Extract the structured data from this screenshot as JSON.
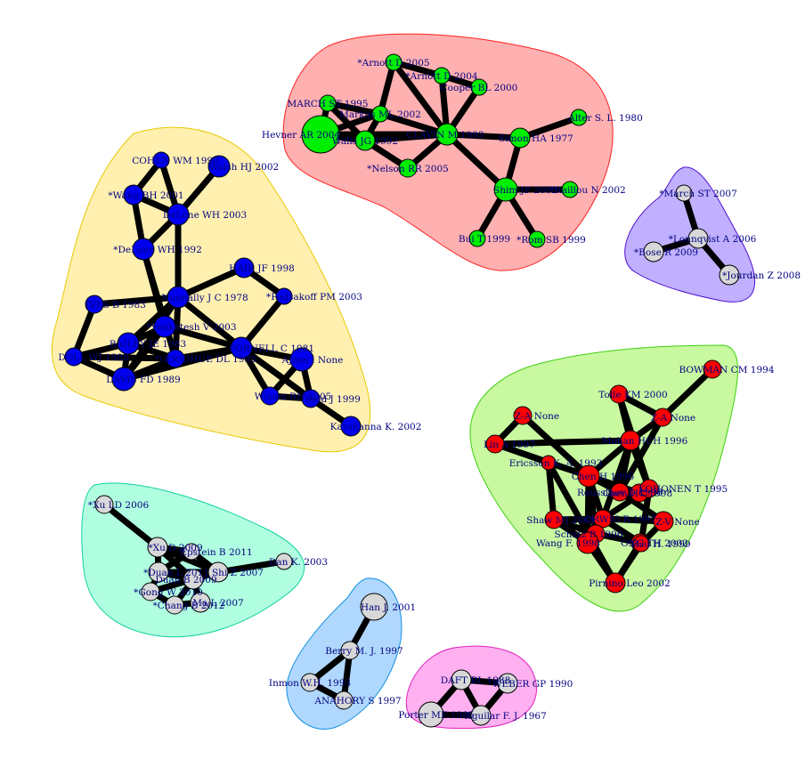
{
  "clusters": [
    {
      "id": "red",
      "fill": "#ffb0b0",
      "stroke": "#ff2020",
      "node_color": "#00ee00",
      "nodes": [
        {
          "id": "arnott05",
          "label": "*Arnott D 2005"
        },
        {
          "id": "arnott04",
          "label": "*Arnott D 2004"
        },
        {
          "id": "cooper",
          "label": "Cooper BL 2000"
        },
        {
          "id": "march95",
          "label": "MARCH ST 1995"
        },
        {
          "id": "markus",
          "label": "Markus ML 2002"
        },
        {
          "id": "hevner",
          "label": "Hevner AR 2004"
        },
        {
          "id": "walls",
          "label": "Walls JG 1992"
        },
        {
          "id": "clavin",
          "label": "CLAVIN M 1993"
        },
        {
          "id": "simon",
          "label": "Simon HA 1977"
        },
        {
          "id": "alter",
          "label": "Alter S. L. 1980"
        },
        {
          "id": "nelson",
          "label": "*Nelson RR 2005"
        },
        {
          "id": "shim",
          "label": "Shim JP 2002"
        },
        {
          "id": "raillou",
          "label": "*Raillou N 2002"
        },
        {
          "id": "bui",
          "label": "Bui T 1999"
        },
        {
          "id": "rom",
          "label": "*Rom SB 1999"
        }
      ]
    },
    {
      "id": "yellow",
      "fill": "#fff0b0",
      "stroke": "#e8c800",
      "node_color": "#0000ee",
      "nodes": [
        {
          "id": "cohen",
          "label": "COHEN WM 1990"
        },
        {
          "id": "walsh",
          "label": "Walsh HJ 2002"
        },
        {
          "id": "wang01",
          "label": "*Wang BH 2001"
        },
        {
          "id": "delone03",
          "label": "DeLone WH 2003"
        },
        {
          "id": "delone92",
          "label": "*DeLone WH 1992"
        },
        {
          "id": "hair",
          "label": "HAIR JF 1998"
        },
        {
          "id": "ives",
          "label": "IVES B 1983"
        },
        {
          "id": "nunnally",
          "label": "Nunnally J C 1978"
        },
        {
          "id": "podsakoff",
          "label": "*Podsakoff PM 2003"
        },
        {
          "id": "venkatesh",
          "label": "*Venkatesh V 2003"
        },
        {
          "id": "bailey",
          "label": "BAILEY JE 1983"
        },
        {
          "id": "doll",
          "label": "DOLL WJ 1988"
        },
        {
          "id": "goodhue",
          "label": "*GOODHUE DL 1995"
        },
        {
          "id": "fornell",
          "label": "FORNELL C 1981"
        },
        {
          "id": "davis",
          "label": "DAVIS FD 1989"
        },
        {
          "id": "ajzen",
          "label": "Ajzen I None"
        },
        {
          "id": "wixom",
          "label": "Wixom BH 2005"
        },
        {
          "id": "todd",
          "label": "Todd J 1999"
        },
        {
          "id": "karahanna",
          "label": "Karahanna K. 2002"
        }
      ]
    },
    {
      "id": "purple",
      "fill": "#c0b0ff",
      "stroke": "#5010d0",
      "node_color": "#d8d8d8",
      "nodes": [
        {
          "id": "march07",
          "label": "*March ST 2007"
        },
        {
          "id": "lonnqvist",
          "label": "*Lonnqvist A 2006"
        },
        {
          "id": "bose",
          "label": "*Bose R 2009"
        },
        {
          "id": "jourdan",
          "label": "*Jourdan Z 2008"
        }
      ]
    },
    {
      "id": "green",
      "fill": "#c8f8a0",
      "stroke": "#40d010",
      "node_color": "#ff0000",
      "nodes": [
        {
          "id": "bowman",
          "label": "BOWMAN CM 1994"
        },
        {
          "id": "tolle",
          "label": "Tolle KM 2000"
        },
        {
          "id": "zan",
          "label": "Z-A None"
        },
        {
          "id": "zaNone",
          "label": "Z-A None"
        },
        {
          "id": "lin",
          "label": "Lin A 1997"
        },
        {
          "id": "mohan",
          "label": "Mohan HCH 1996"
        },
        {
          "id": "chen",
          "label": "Chen H 1996"
        },
        {
          "id": "ericsson",
          "label": "Ericsson K. A. 1993"
        },
        {
          "id": "chenhc",
          "label": "Chen HC 1998"
        },
        {
          "id": "roussinov",
          "label": "Roussinov D 1998"
        },
        {
          "id": "kohonen",
          "label": "KOHONEN T 1995"
        },
        {
          "id": "shaw",
          "label": "Shaw MJ 2001"
        },
        {
          "id": "orwig",
          "label": "ORWIG R 1997"
        },
        {
          "id": "zv",
          "label": "Z-V None"
        },
        {
          "id": "schatz",
          "label": "Schatz B 1996"
        },
        {
          "id": "ong",
          "label": "ONG TH 2002"
        },
        {
          "id": "wang",
          "label": "Wang F. 1998"
        },
        {
          "id": "hsu",
          "label": "Hsu H. 1999"
        },
        {
          "id": "pirnino",
          "label": "Pirnino Leo 2002"
        }
      ]
    },
    {
      "id": "teal",
      "fill": "#b0ffe0",
      "stroke": "#10d0a0",
      "node_color": "#d8d8d8",
      "nodes": [
        {
          "id": "xuld",
          "label": "*Xu LD 2006"
        },
        {
          "id": "xud",
          "label": "*Xu D 2009"
        },
        {
          "id": "epstein",
          "label": "Epstein B 2011"
        },
        {
          "id": "dhan",
          "label": "Dan K. 2003"
        },
        {
          "id": "duan",
          "label": "*Duan L 2011"
        },
        {
          "id": "shi",
          "label": "Shi Z 2007"
        },
        {
          "id": "duanb",
          "label": "Duan B 2009"
        },
        {
          "id": "gong",
          "label": "*Gong W 2010"
        },
        {
          "id": "chang",
          "label": "*Chang B 2012"
        },
        {
          "id": "ma",
          "label": "Ma L 2007"
        }
      ]
    },
    {
      "id": "blue",
      "fill": "#b0d8ff",
      "stroke": "#1090e0",
      "node_color": "#d8d8d8",
      "nodes": [
        {
          "id": "hanj",
          "label": "Han J. 2001"
        },
        {
          "id": "berry",
          "label": "Berry M. J. 1997"
        },
        {
          "id": "inmon",
          "label": "Inmon W.H. 1993"
        },
        {
          "id": "anahory",
          "label": "ANAHORY S 1997"
        }
      ]
    },
    {
      "id": "pink",
      "fill": "#ffb0f0",
      "stroke": "#e020c0",
      "node_color": "#d8d8d8",
      "nodes": [
        {
          "id": "daft",
          "label": "DAFT RL 1988"
        },
        {
          "id": "weber",
          "label": "WEBER GP 1990"
        },
        {
          "id": "porter",
          "label": "Porter ME 1985"
        },
        {
          "id": "aguilar",
          "label": "Aguilar F. J. 1967"
        }
      ]
    }
  ],
  "edges": [
    [
      "arnott05",
      "arnott04"
    ],
    [
      "arnott05",
      "markus"
    ],
    [
      "arnott05",
      "clavin"
    ],
    [
      "arnott04",
      "cooper"
    ],
    [
      "arnott04",
      "clavin"
    ],
    [
      "cooper",
      "clavin"
    ],
    [
      "march95",
      "markus"
    ],
    [
      "march95",
      "hevner"
    ],
    [
      "march95",
      "walls"
    ],
    [
      "markus",
      "walls"
    ],
    [
      "markus",
      "hevner"
    ],
    [
      "markus",
      "clavin"
    ],
    [
      "hevner",
      "walls"
    ],
    [
      "hevner",
      "clavin"
    ],
    [
      "walls",
      "clavin"
    ],
    [
      "clavin",
      "simon"
    ],
    [
      "clavin",
      "shim"
    ],
    [
      "clavin",
      "nelson"
    ],
    [
      "simon",
      "alter"
    ],
    [
      "simon",
      "shim"
    ],
    [
      "shim",
      "raillou"
    ],
    [
      "shim",
      "bui"
    ],
    [
      "shim",
      "rom"
    ],
    [
      "nelson",
      "walls"
    ],
    [
      "cohen",
      "wang01"
    ],
    [
      "cohen",
      "delone03"
    ],
    [
      "walsh",
      "delone03"
    ],
    [
      "wang01",
      "delone03"
    ],
    [
      "wang01",
      "delone92"
    ],
    [
      "delone03",
      "delone92"
    ],
    [
      "delone03",
      "nunnally"
    ],
    [
      "delone92",
      "venkatesh"
    ],
    [
      "delone92",
      "goodhue"
    ],
    [
      "hair",
      "nunnally"
    ],
    [
      "hair",
      "podsakoff"
    ],
    [
      "ives",
      "nunnally"
    ],
    [
      "ives",
      "doll"
    ],
    [
      "nunnally",
      "fornell"
    ],
    [
      "nunnally",
      "davis"
    ],
    [
      "nunnally",
      "bailey"
    ],
    [
      "nunnally",
      "goodhue"
    ],
    [
      "podsakoff",
      "fornell"
    ],
    [
      "venkatesh",
      "davis"
    ],
    [
      "venkatesh",
      "fornell"
    ],
    [
      "venkatesh",
      "bailey"
    ],
    [
      "bailey",
      "doll"
    ],
    [
      "bailey",
      "davis"
    ],
    [
      "bailey",
      "goodhue"
    ],
    [
      "doll",
      "davis"
    ],
    [
      "doll",
      "goodhue"
    ],
    [
      "goodhue",
      "fornell"
    ],
    [
      "goodhue",
      "davis"
    ],
    [
      "fornell",
      "ajzen"
    ],
    [
      "fornell",
      "wixom"
    ],
    [
      "fornell",
      "todd"
    ],
    [
      "fornell",
      "davis"
    ],
    [
      "ajzen",
      "wixom"
    ],
    [
      "ajzen",
      "todd"
    ],
    [
      "wixom",
      "todd"
    ],
    [
      "todd",
      "karahanna"
    ],
    [
      "march07",
      "lonnqvist"
    ],
    [
      "lonnqvist",
      "bose"
    ],
    [
      "lonnqvist",
      "jourdan"
    ],
    [
      "bowman",
      "zaNone"
    ],
    [
      "tolle",
      "zaNone"
    ],
    [
      "tolle",
      "mohan"
    ],
    [
      "tolle",
      "kohonen"
    ],
    [
      "zan",
      "lin"
    ],
    [
      "zan",
      "chen"
    ],
    [
      "lin",
      "mohan"
    ],
    [
      "lin",
      "chen"
    ],
    [
      "mohan",
      "chen"
    ],
    [
      "mohan",
      "roussinov"
    ],
    [
      "mohan",
      "kohonen"
    ],
    [
      "zaNone",
      "mohan"
    ],
    [
      "zaNone",
      "roussinov"
    ],
    [
      "ericsson",
      "chen"
    ],
    [
      "ericsson",
      "shaw"
    ],
    [
      "ericsson",
      "pirnino"
    ],
    [
      "chen",
      "chenhc"
    ],
    [
      "chen",
      "roussinov"
    ],
    [
      "chen",
      "orwig"
    ],
    [
      "chen",
      "schatz"
    ],
    [
      "chenhc",
      "roussinov"
    ],
    [
      "chenhc",
      "kohonen"
    ],
    [
      "roussinov",
      "kohonen"
    ],
    [
      "roussinov",
      "zv"
    ],
    [
      "kohonen",
      "orwig"
    ],
    [
      "kohonen",
      "hsu"
    ],
    [
      "shaw",
      "orwig"
    ],
    [
      "shaw",
      "schatz"
    ],
    [
      "shaw",
      "wang"
    ],
    [
      "orwig",
      "zv"
    ],
    [
      "orwig",
      "schatz"
    ],
    [
      "orwig",
      "ong"
    ],
    [
      "zv",
      "hsu"
    ],
    [
      "schatz",
      "wang"
    ],
    [
      "schatz",
      "ong"
    ],
    [
      "ong",
      "hsu"
    ],
    [
      "ong",
      "pirnino"
    ],
    [
      "wang",
      "pirnino"
    ],
    [
      "hsu",
      "pirnino"
    ],
    [
      "lin",
      "ericsson"
    ],
    [
      "chen",
      "wang"
    ],
    [
      "mohan",
      "orwig"
    ],
    [
      "xuld",
      "xud"
    ],
    [
      "xud",
      "epstein"
    ],
    [
      "xud",
      "duan"
    ],
    [
      "xud",
      "shi"
    ],
    [
      "epstein",
      "shi"
    ],
    [
      "shi",
      "dhan"
    ],
    [
      "duan",
      "shi"
    ],
    [
      "duan",
      "duanb"
    ],
    [
      "duan",
      "gong"
    ],
    [
      "duanb",
      "shi"
    ],
    [
      "gong",
      "chang"
    ],
    [
      "chang",
      "ma"
    ],
    [
      "ma",
      "duanb"
    ],
    [
      "gong",
      "duanb"
    ],
    [
      "chang",
      "duanb"
    ],
    [
      "xud",
      "duanb"
    ],
    [
      "duan",
      "epstein"
    ],
    [
      "hanj",
      "berry"
    ],
    [
      "berry",
      "inmon"
    ],
    [
      "berry",
      "anahory"
    ],
    [
      "inmon",
      "anahory"
    ],
    [
      "daft",
      "weber"
    ],
    [
      "daft",
      "porter"
    ],
    [
      "daft",
      "aguilar"
    ],
    [
      "weber",
      "aguilar"
    ],
    [
      "porter",
      "aguilar"
    ]
  ]
}
